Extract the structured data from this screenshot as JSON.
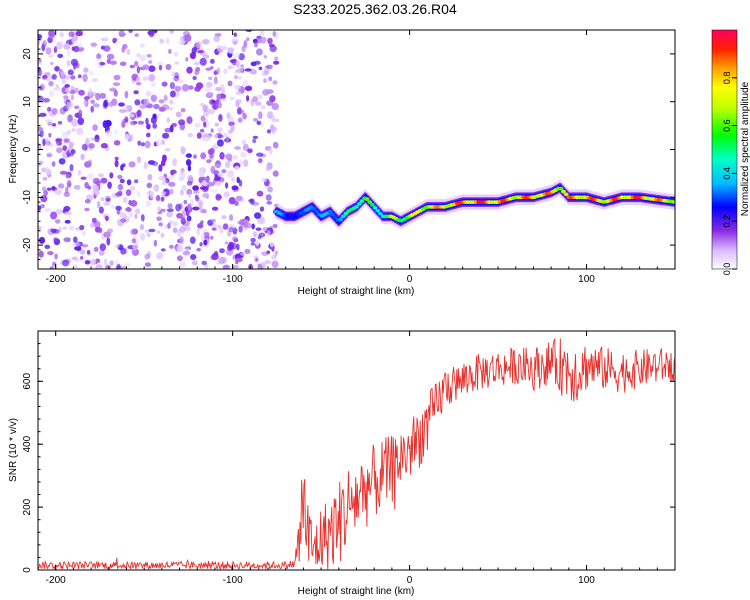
{
  "title": "S233.2025.362.03.26.R04",
  "chart_data": [
    {
      "type": "heatmap",
      "panel": "spectrogram",
      "xlabel": "Height of straight line (km)",
      "ylabel": "Frequency (Hz)",
      "xlim": [
        -210,
        150
      ],
      "ylim": [
        -25,
        25
      ],
      "xticks": [
        -200,
        -100,
        0,
        100
      ],
      "yticks": [
        -20,
        -10,
        0,
        10,
        20
      ],
      "colorbar": {
        "label": "Normalized spectral amplitude",
        "range": [
          0,
          1
        ],
        "ticks": [
          0.0,
          0.2,
          0.4,
          0.6,
          0.8
        ]
      },
      "noise_region": {
        "x_range": [
          -210,
          -75
        ],
        "y_range": [
          -25,
          25
        ],
        "amplitude_range": [
          0.05,
          0.3
        ]
      },
      "ridge": {
        "x": [
          -75,
          -70,
          -65,
          -60,
          -55,
          -50,
          -45,
          -40,
          -35,
          -30,
          -25,
          -20,
          -15,
          -10,
          -5,
          0,
          5,
          10,
          20,
          30,
          40,
          50,
          60,
          70,
          80,
          85,
          90,
          100,
          110,
          120,
          130,
          140,
          150
        ],
        "freq": [
          -13,
          -14,
          -14,
          -13,
          -12,
          -14,
          -13,
          -15,
          -13,
          -12,
          -10,
          -12,
          -14,
          -14,
          -15,
          -14,
          -13,
          -12,
          -12,
          -11,
          -11,
          -11,
          -10,
          -10,
          -9,
          -8,
          -10,
          -10,
          -11,
          -10,
          -10,
          -10.5,
          -11
        ],
        "amplitude": [
          0.4,
          0.3,
          0.35,
          0.3,
          0.45,
          0.4,
          0.35,
          0.45,
          0.5,
          0.6,
          0.7,
          0.5,
          0.6,
          0.7,
          0.7,
          0.75,
          0.8,
          0.85,
          0.9,
          0.95,
          1.0,
          0.95,
          0.9,
          0.95,
          0.9,
          0.85,
          0.9,
          0.95,
          0.9,
          0.95,
          1.0,
          0.9,
          0.85
        ]
      }
    },
    {
      "type": "line",
      "panel": "snr",
      "xlabel": "Height of straight line (km)",
      "ylabel": "SNR (10 * v/v)",
      "xlim": [
        -210,
        150
      ],
      "ylim": [
        0,
        760
      ],
      "xticks": [
        -200,
        -100,
        0,
        100
      ],
      "yticks": [
        0,
        200,
        400,
        600
      ],
      "series": [
        {
          "color": "#e8302c",
          "x": [
            -210,
            -200,
            -180,
            -160,
            -140,
            -120,
            -100,
            -80,
            -70,
            -65,
            -62,
            -60,
            -58,
            -55,
            -52,
            -50,
            -45,
            -40,
            -35,
            -30,
            -25,
            -20,
            -15,
            -10,
            -5,
            0,
            5,
            10,
            15,
            20,
            25,
            30,
            35,
            40,
            50,
            60,
            70,
            80,
            85,
            90,
            95,
            100,
            110,
            120,
            130,
            140,
            150
          ],
          "y": [
            15,
            15,
            15,
            15,
            15,
            15,
            15,
            15,
            15,
            20,
            100,
            250,
            120,
            60,
            80,
            100,
            120,
            150,
            200,
            230,
            260,
            280,
            300,
            320,
            360,
            380,
            420,
            460,
            520,
            580,
            590,
            600,
            620,
            630,
            640,
            650,
            640,
            660,
            650,
            640,
            630,
            650,
            640,
            630,
            640,
            650,
            650
          ],
          "spread": [
            12,
            12,
            12,
            12,
            12,
            12,
            12,
            12,
            12,
            15,
            120,
            180,
            150,
            100,
            100,
            110,
            120,
            140,
            140,
            130,
            130,
            120,
            120,
            110,
            100,
            100,
            100,
            100,
            80,
            70,
            60,
            60,
            60,
            60,
            60,
            60,
            70,
            70,
            90,
            110,
            100,
            80,
            70,
            70,
            60,
            60,
            50
          ]
        }
      ]
    }
  ]
}
